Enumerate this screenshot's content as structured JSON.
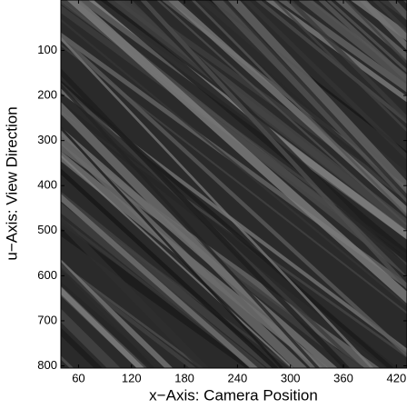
{
  "chart_data": {
    "type": "image",
    "xlabel": "x−Axis: Camera Position",
    "ylabel": "u−Axis: View Direction",
    "xlim": [
      40,
      432
    ],
    "xticks": [
      60,
      120,
      180,
      240,
      300,
      360,
      420
    ],
    "ylim": [
      805,
      -12
    ],
    "yticks": [
      100,
      200,
      300,
      400,
      500,
      600,
      700,
      800
    ],
    "colormap": "gray"
  }
}
